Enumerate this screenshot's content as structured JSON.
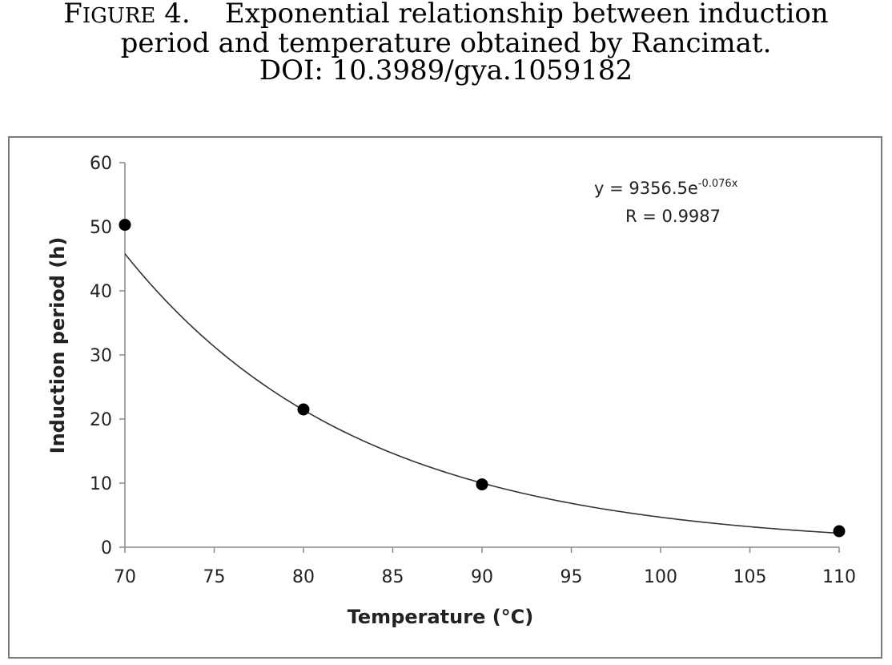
{
  "caption": {
    "figure_label": "Figure 4.",
    "text_line1": "Exponential relationship between induction",
    "text_line2": "period and temperature obtained by Rancimat.",
    "doi": "DOI: 10.3989/gya.1059182"
  },
  "chart_data": {
    "type": "scatter",
    "title": "",
    "xlabel": "Temperature (°C)",
    "ylabel": "Induction period (h)",
    "xlim": [
      70,
      110
    ],
    "ylim": [
      0,
      60
    ],
    "xticks": [
      70,
      75,
      80,
      85,
      90,
      95,
      100,
      105,
      110
    ],
    "yticks": [
      0,
      10,
      20,
      30,
      40,
      50,
      60
    ],
    "grid": false,
    "points": [
      {
        "x": 70,
        "y": 50.3
      },
      {
        "x": 80,
        "y": 21.5
      },
      {
        "x": 90,
        "y": 9.8
      },
      {
        "x": 110,
        "y": 2.5
      }
    ],
    "trendline": {
      "type": "exponential",
      "a": 9356.5,
      "b": -0.076,
      "equation_prefix": "y = 9356.5e",
      "equation_exponent": "-0.076x",
      "r_label": "R = 0.9987"
    }
  }
}
